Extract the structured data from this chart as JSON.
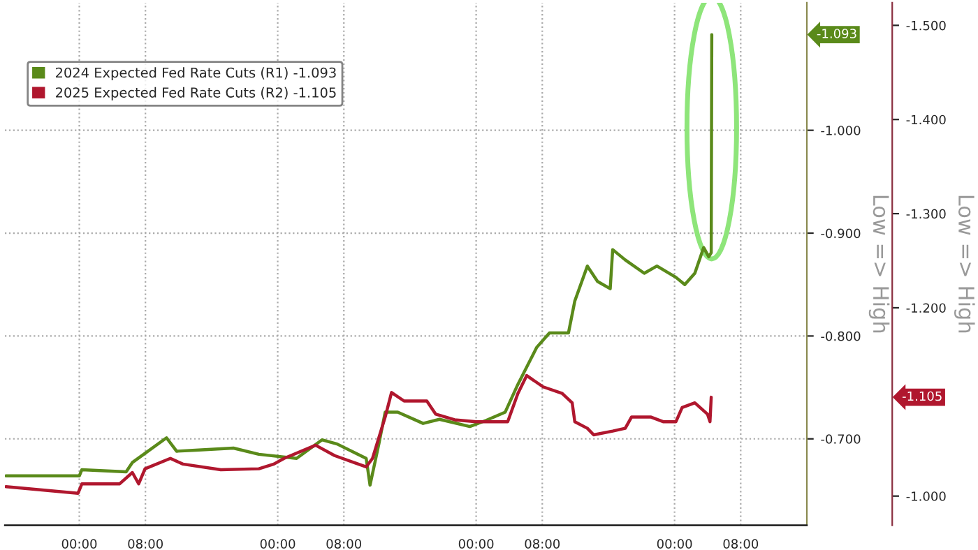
{
  "chart_data": {
    "type": "line",
    "ylabel": "Low => High",
    "y2label": "Low => High",
    "xlim": [
      "2024-06-09T15:00",
      "2024-06-13T16:00"
    ],
    "xticks": [
      {
        "value": "2024-06-10T00:00",
        "label": "00:00"
      },
      {
        "value": "2024-06-10T08:00",
        "label": "08:00"
      },
      {
        "value": "2024-06-11T00:00",
        "label": "00:00"
      },
      {
        "value": "2024-06-11T08:00",
        "label": "08:00"
      },
      {
        "value": "2024-06-12T00:00",
        "label": "00:00"
      },
      {
        "value": "2024-06-12T08:00",
        "label": "08:00"
      },
      {
        "value": "2024-06-13T00:00",
        "label": "00:00"
      },
      {
        "value": "2024-06-13T08:00",
        "label": "08:00"
      }
    ],
    "ylim": [
      -0.616,
      -1.124
    ],
    "yticks": [
      {
        "value": -1.0,
        "label": "-1.000"
      },
      {
        "value": -0.9,
        "label": "-0.900"
      },
      {
        "value": -0.8,
        "label": "-0.800"
      },
      {
        "value": -0.7,
        "label": "-0.700"
      }
    ],
    "y2lim": [
      -0.969,
      -1.524
    ],
    "y2ticks": [
      {
        "value": -1.5,
        "label": "-1.500"
      },
      {
        "value": -1.4,
        "label": "-1.400"
      },
      {
        "value": -1.3,
        "label": "-1.300"
      },
      {
        "value": -1.2,
        "label": "-1.200"
      },
      {
        "value": -1.0,
        "label": "-1.000"
      }
    ],
    "grid": true,
    "legend": "top left",
    "annotations": [
      "-1.093",
      "-1.105"
    ],
    "series": [
      {
        "name": "2024 Expected Fed Rate Cuts (R1) -1.093",
        "color": "#5a8a1a",
        "x": [
          "2024-06-09T15:08",
          "2024-06-10T00:00",
          "2024-06-10T00:19",
          "2024-06-10T05:40",
          "2024-06-10T06:25",
          "2024-06-10T10:33",
          "2024-06-10T11:46",
          "2024-06-10T14:04",
          "2024-06-10T18:39",
          "2024-06-10T21:43",
          "2024-06-11T02:17",
          "2024-06-11T05:21",
          "2024-06-11T07:11",
          "2024-06-11T10:42",
          "2024-06-11T11:10",
          "2024-06-11T12:14",
          "2024-06-11T13:00",
          "2024-06-11T14:31",
          "2024-06-11T17:35",
          "2024-06-11T19:34",
          "2024-06-11T23:14",
          "2024-06-12T01:13",
          "2024-06-12T03:31",
          "2024-06-12T05:03",
          "2024-06-12T07:20",
          "2024-06-12T08:52",
          "2024-06-12T11:10",
          "2024-06-12T11:56",
          "2024-06-12T13:27",
          "2024-06-12T14:41",
          "2024-06-12T16:13",
          "2024-06-12T16:31",
          "2024-06-12T18:02",
          "2024-06-12T20:20",
          "2024-06-12T21:52",
          "2024-06-13T00:10",
          "2024-06-13T01:14",
          "2024-06-13T02:27",
          "2024-06-13T03:31",
          "2024-06-13T04:08",
          "2024-06-13T04:26",
          "2024-06-13T04:30"
        ],
        "values": [
          -0.664,
          -0.664,
          -0.67,
          -0.668,
          -0.677,
          -0.701,
          -0.688,
          -0.689,
          -0.691,
          -0.685,
          -0.681,
          -0.699,
          -0.695,
          -0.681,
          -0.655,
          -0.695,
          -0.726,
          -0.726,
          -0.715,
          -0.719,
          -0.712,
          -0.718,
          -0.726,
          -0.753,
          -0.789,
          -0.803,
          -0.803,
          -0.834,
          -0.868,
          -0.853,
          -0.846,
          -0.884,
          -0.874,
          -0.861,
          -0.868,
          -0.857,
          -0.85,
          -0.861,
          -0.886,
          -0.877,
          -0.881,
          -1.093
        ]
      },
      {
        "name": "2025 Expected Fed Rate Cuts (R2) -1.105",
        "color": "#b0172e",
        "axis": "y2",
        "x": [
          "2024-06-09T15:08",
          "2024-06-09T23:51",
          "2024-06-10T00:19",
          "2024-06-10T04:53",
          "2024-06-10T06:25",
          "2024-06-10T07:11",
          "2024-06-10T07:57",
          "2024-06-10T11:01",
          "2024-06-10T12:32",
          "2024-06-10T17:07",
          "2024-06-10T21:43",
          "2024-06-10T23:32",
          "2024-06-11T00:46",
          "2024-06-11T04:35",
          "2024-06-11T06:53",
          "2024-06-11T10:42",
          "2024-06-11T11:28",
          "2024-06-11T13:00",
          "2024-06-11T13:46",
          "2024-06-11T15:17",
          "2024-06-11T18:02",
          "2024-06-11T19:07",
          "2024-06-11T21:24",
          "2024-06-12T00:00",
          "2024-06-12T03:49",
          "2024-06-12T05:03",
          "2024-06-12T06:07",
          "2024-06-12T08:06",
          "2024-06-12T10:24",
          "2024-06-12T11:37",
          "2024-06-12T11:56",
          "2024-06-12T13:27",
          "2024-06-12T14:13",
          "2024-06-12T16:31",
          "2024-06-12T18:02",
          "2024-06-12T18:48",
          "2024-06-12T21:06",
          "2024-06-12T22:37",
          "2024-06-13T00:10",
          "2024-06-13T00:55",
          "2024-06-13T02:27",
          "2024-06-13T03:59",
          "2024-06-13T04:17",
          "2024-06-13T04:26"
        ],
        "values": [
          -1.01,
          -1.003,
          -1.013,
          -1.013,
          -1.025,
          -1.013,
          -1.029,
          -1.04,
          -1.034,
          -1.028,
          -1.029,
          -1.034,
          -1.04,
          -1.054,
          -1.043,
          -1.031,
          -1.04,
          -1.084,
          -1.11,
          -1.101,
          -1.101,
          -1.087,
          -1.081,
          -1.079,
          -1.079,
          -1.109,
          -1.128,
          -1.116,
          -1.109,
          -1.099,
          -1.079,
          -1.072,
          -1.065,
          -1.069,
          -1.072,
          -1.084,
          -1.084,
          -1.079,
          -1.079,
          -1.094,
          -1.099,
          -1.087,
          -1.079,
          -1.105
        ]
      }
    ]
  }
}
